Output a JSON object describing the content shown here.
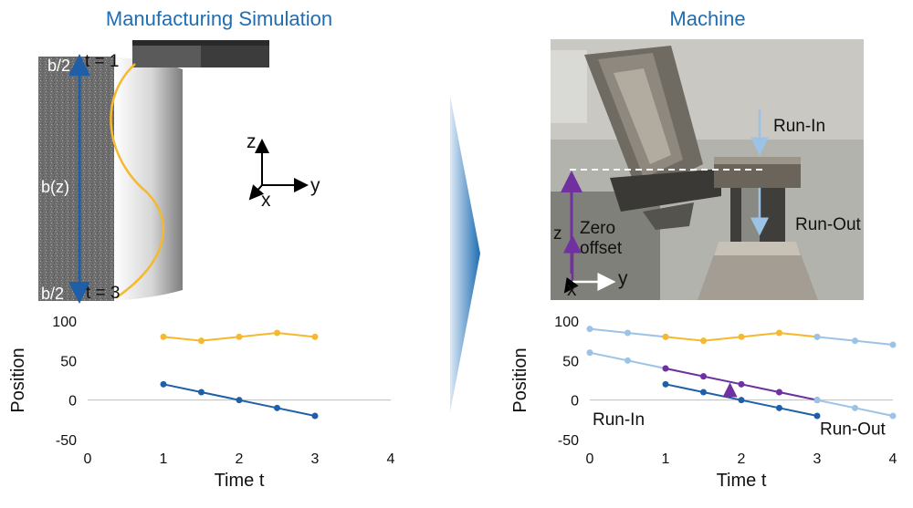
{
  "titles": {
    "left": "Manufacturing Simulation",
    "right": "Machine"
  },
  "simulation": {
    "label_top_b": "b/2",
    "label_top_t": "t = 1",
    "label_mid": "b(z)",
    "label_bot_b": "b/2",
    "label_bot_t": "t = 3",
    "axes": {
      "z": "z",
      "y": "y",
      "x": "x"
    }
  },
  "machine": {
    "run_in": "Run-In",
    "run_out": "Run-Out",
    "zero_offset_line1": "Zero",
    "zero_offset_line2": "offset",
    "axes": {
      "z": "z",
      "y": "y",
      "x": "x"
    }
  },
  "colors": {
    "title": "#1f6db3",
    "dark_blue": "#1f5fa8",
    "orange": "#f5b82e",
    "light_blue": "#9cc3e6",
    "purple": "#7030a0",
    "arrow_gradient_start": "#dce9f6",
    "arrow_gradient_end": "#1f6db3"
  },
  "chart_data": [
    {
      "type": "line",
      "title": "",
      "xlabel": "Time t",
      "ylabel": "Position",
      "xlim": [
        0,
        4
      ],
      "ylim": [
        -50,
        100
      ],
      "xticks": [
        "0",
        "1",
        "2",
        "3",
        "4"
      ],
      "yticks": [
        "100",
        "50",
        "0",
        "-50"
      ],
      "series": [
        {
          "name": "simulation-top",
          "color": "orange",
          "x": [
            1,
            1.5,
            2,
            2.5,
            3
          ],
          "y": [
            80,
            75,
            80,
            85,
            80
          ]
        },
        {
          "name": "simulation-bottom",
          "color": "dark_blue",
          "x": [
            1,
            1.5,
            2,
            2.5,
            3
          ],
          "y": [
            20,
            10,
            0,
            -10,
            -20
          ]
        }
      ]
    },
    {
      "type": "line",
      "title": "",
      "xlabel": "Time t",
      "ylabel": "Position",
      "xlim": [
        0,
        4
      ],
      "ylim": [
        -50,
        100
      ],
      "xticks": [
        "0",
        "1",
        "2",
        "3",
        "4"
      ],
      "yticks": [
        "100",
        "50",
        "0",
        "-50"
      ],
      "annotations": {
        "run_in": "Run-In",
        "run_out": "Run-Out"
      },
      "series": [
        {
          "name": "run-in-top",
          "color": "light_blue",
          "x": [
            0,
            0.5,
            1
          ],
          "y": [
            90,
            85,
            80
          ]
        },
        {
          "name": "machine-top",
          "color": "orange",
          "x": [
            1,
            1.5,
            2,
            2.5,
            3
          ],
          "y": [
            80,
            75,
            80,
            85,
            80
          ]
        },
        {
          "name": "run-out-top",
          "color": "light_blue",
          "x": [
            3,
            3.5,
            4
          ],
          "y": [
            80,
            75,
            70
          ]
        },
        {
          "name": "run-in-bottom",
          "color": "light_blue",
          "x": [
            0,
            0.5,
            1,
            1.5,
            2,
            2.5,
            3
          ],
          "y": [
            60,
            50,
            40,
            30,
            20,
            10,
            0
          ]
        },
        {
          "name": "zero-offset",
          "color": "purple",
          "x": [
            1,
            1.5,
            2,
            2.5,
            3
          ],
          "y": [
            40,
            30,
            20,
            10,
            0
          ]
        },
        {
          "name": "machine-bottom",
          "color": "dark_blue",
          "x": [
            1,
            1.5,
            2,
            2.5,
            3
          ],
          "y": [
            20,
            10,
            0,
            -10,
            -20
          ]
        },
        {
          "name": "run-out-bottom",
          "color": "light_blue",
          "x": [
            3,
            3.5,
            4
          ],
          "y": [
            0,
            -10,
            -20
          ]
        }
      ]
    }
  ]
}
